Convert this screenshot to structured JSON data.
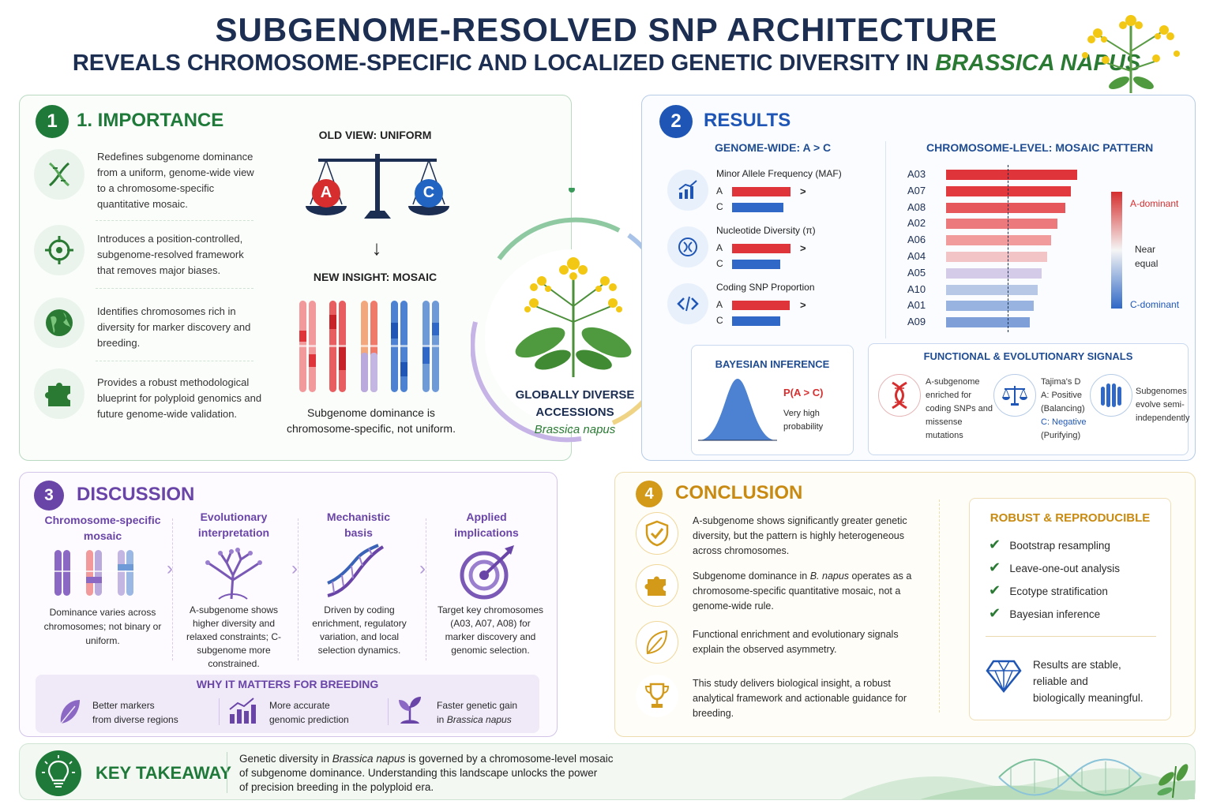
{
  "title": {
    "line1": "SUBGENOME-RESOLVED SNP ARCHITECTURE",
    "line2_prefix": "REVEALS CHROMOSOME-SPECIFIC AND LOCALIZED GENETIC DIVERSITY IN ",
    "line2_species": "BRASSICA NAPUS"
  },
  "importance": {
    "number": "1",
    "title": "1. IMPORTANCE",
    "items": [
      {
        "icon": "dna-icon",
        "text": "Redefines subgenome dominance from a uniform, genome-wide view to a chromosome-specific quantitative mosaic."
      },
      {
        "icon": "target-icon",
        "text": "Introduces a position-controlled, subgenome-resolved framework that removes major biases."
      },
      {
        "icon": "globe-icon",
        "text": "Identifies chromosomes rich in diversity for marker discovery and breeding."
      },
      {
        "icon": "puzzle-icon",
        "text": "Provides a robust methodological blueprint for polyploid genomics and future genome-wide validation."
      }
    ],
    "old_view": "OLD VIEW: UNIFORM",
    "scale_a": "A",
    "scale_c": "C",
    "arrow": "↓",
    "new_insight": "NEW INSIGHT: MOSAIC",
    "caption": "Subgenome dominance is chromosome-specific, not uniform."
  },
  "center": {
    "label1": "GLOBALLY DIVERSE",
    "label2": "ACCESSIONS",
    "species": "Brassica napus"
  },
  "results": {
    "number": "2",
    "title": "RESULTS",
    "genome_wide_title": "GENOME-WIDE: A > C",
    "metrics": [
      {
        "icon": "chart-icon",
        "name": "Minor Allele Frequency (MAF)",
        "a": "A",
        "c": "C",
        "sym": ">",
        "a_val": 1.0,
        "c_val": 0.88
      },
      {
        "icon": "diversity-icon",
        "name": "Nucleotide Diversity (π)",
        "a": "A",
        "c": "C",
        "sym": ">",
        "a_val": 1.0,
        "c_val": 0.82
      },
      {
        "icon": "code-icon",
        "name": "Coding SNP Proportion",
        "a": "A",
        "c": "C",
        "sym": ">",
        "a_val": 0.99,
        "c_val": 0.82
      }
    ],
    "chrom_title": "CHROMOSOME-LEVEL: MOSAIC PATTERN",
    "chromosomes": [
      {
        "name": "A03",
        "value": 1.0,
        "color": "#e0343b"
      },
      {
        "name": "A07",
        "value": 0.95,
        "color": "#e2393f"
      },
      {
        "name": "A08",
        "value": 0.91,
        "color": "#e6575b"
      },
      {
        "name": "A02",
        "value": 0.85,
        "color": "#ec7a7c"
      },
      {
        "name": "A06",
        "value": 0.8,
        "color": "#f19b9c"
      },
      {
        "name": "A04",
        "value": 0.77,
        "color": "#f3c4c6"
      },
      {
        "name": "A05",
        "value": 0.73,
        "color": "#d4cbe9"
      },
      {
        "name": "A10",
        "value": 0.7,
        "color": "#b7c7e6"
      },
      {
        "name": "A01",
        "value": 0.67,
        "color": "#98b3e0"
      },
      {
        "name": "A09",
        "value": 0.64,
        "color": "#7f9fd8"
      }
    ],
    "legend": {
      "top": "A-dominant",
      "mid1": "Near",
      "mid2": "equal",
      "bottom": "C-dominant"
    },
    "bayes": {
      "title": "BAYESIAN INFERENCE",
      "prob": "P(A > C)",
      "desc1": "Very high",
      "desc2": "probability"
    },
    "functional": {
      "title": "FUNCTIONAL & EVOLUTIONARY SIGNALS",
      "s1": [
        "A-subgenome",
        "enriched for",
        "coding SNPs and",
        "missense",
        "mutations"
      ],
      "s2a": "Tajima's D",
      "s2b": "A: Positive",
      "s2c": "(Balancing)",
      "s2d": "C: Negative",
      "s2e": "(Purifying)",
      "s3": [
        "Subgenomes",
        "evolve semi-",
        "independently"
      ]
    }
  },
  "discussion": {
    "number": "3",
    "title": "DISCUSSION",
    "cols": [
      {
        "h1": "Chromosome-specific",
        "h2": "mosaic",
        "icon": "chromosome-icon",
        "text": "Dominance varies across chromosomes; not binary or uniform."
      },
      {
        "h1": "Evolutionary",
        "h2": "interpretation",
        "icon": "tree-icon",
        "text": "A-subgenome shows higher diversity and relaxed constraints; C-subgenome more constrained."
      },
      {
        "h1": "Mechanistic",
        "h2": "basis",
        "icon": "dna-helix-icon",
        "text": "Driven by coding enrichment, regulatory variation, and local selection dynamics."
      },
      {
        "h1": "Applied",
        "h2": "implications",
        "icon": "target-icon",
        "text": "Target key chromosomes (A03, A07, A08) for marker discovery and genomic selection."
      }
    ],
    "why_title": "WHY IT MATTERS FOR BREEDING",
    "why": [
      {
        "icon": "leaf-icon",
        "l1": "Better markers",
        "l2": "from diverse regions"
      },
      {
        "icon": "growth-chart-icon",
        "l1": "More accurate",
        "l2": "genomic prediction"
      },
      {
        "icon": "sprout-icon",
        "l1": "Faster genetic gain",
        "l2": "in ",
        "l2i": "Brassica napus"
      }
    ]
  },
  "conclusion": {
    "number": "4",
    "title": "CONCLUSION",
    "items": [
      {
        "icon": "shield-check-icon",
        "text": "A-subgenome shows significantly greater genetic diversity, but the pattern is highly heterogeneous across chromosomes."
      },
      {
        "icon": "puzzle-icon",
        "pre": "Subgenome dominance in ",
        "ital": "B. napus",
        "post": " operates as a chromosome-specific quantitative mosaic, not a genome-wide rule."
      },
      {
        "icon": "leaf-icon",
        "text": "Functional enrichment and evolutionary signals explain the observed asymmetry."
      },
      {
        "icon": "trophy-icon",
        "text": "This study delivers biological insight, a robust analytical framework and actionable guidance for breeding."
      }
    ],
    "robust_title": "ROBUST & REPRODUCIBLE",
    "checks": [
      "Bootstrap resampling",
      "Leave-one-out analysis",
      "Ecotype stratification",
      "Bayesian inference"
    ],
    "check_mark": "✔",
    "stable": [
      "Results are stable,",
      "reliable and",
      "biologically meaningful."
    ]
  },
  "takeaway": {
    "title": "KEY TAKEAWAY",
    "pre": "Genetic diversity in ",
    "ital": "Brassica napus",
    "post": " is governed by a chromosome-level mosaic",
    "line2": "of subgenome dominance. Understanding this landscape unlocks the power",
    "line3": "of precision breeding in the polyploid era."
  },
  "colors": {
    "green": "#1f7a3a",
    "blue": "#1f56b5",
    "purple": "#6a45a8",
    "gold": "#d39a1a",
    "navy": "#1c2e52"
  }
}
